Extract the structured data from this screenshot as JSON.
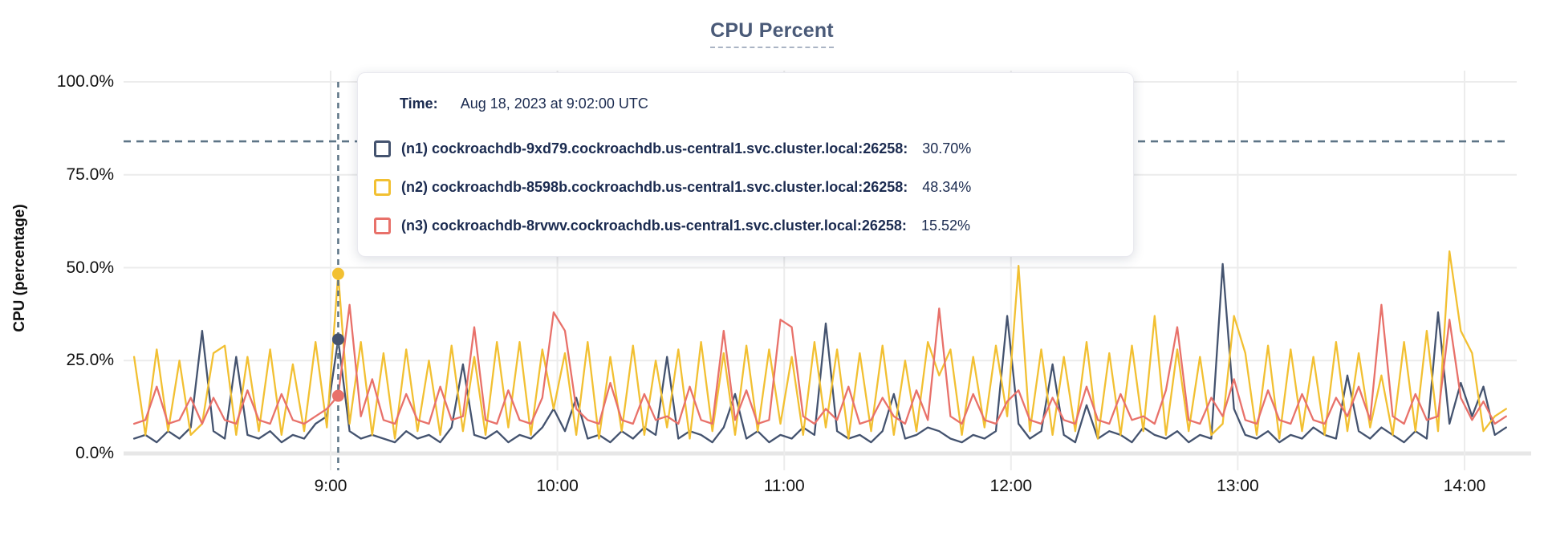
{
  "header": {
    "title": "CPU Percent"
  },
  "tooltip": {
    "time_label": "Time:",
    "time_value": "Aug 18, 2023 at 9:02:00 UTC",
    "rows": [
      {
        "id": "n1",
        "label": "(n1) cockroachdb-9xd79.cockroachdb.us-central1.svc.cluster.local:26258:",
        "value": "30.70%",
        "color": "#44536f"
      },
      {
        "id": "n2",
        "label": "(n2) cockroachdb-8598b.cockroachdb.us-central1.svc.cluster.local:26258:",
        "value": "48.34%",
        "color": "#f2c032"
      },
      {
        "id": "n3",
        "label": "(n3) cockroachdb-8rvwv.cockroachdb.us-central1.svc.cluster.local:26258:",
        "value": "15.52%",
        "color": "#e8716a"
      }
    ]
  },
  "colors": {
    "title": "#4a5a78",
    "gridline": "#ececec",
    "baseline": "#e7e7e7",
    "crosshair": "#5d7486",
    "tooltip_text": "#1b2b50"
  },
  "chart_data": {
    "type": "line",
    "title": "CPU Percent",
    "xlabel": "",
    "ylabel": "CPU (percentage)",
    "ylim": [
      0,
      100
    ],
    "grid": true,
    "legend_position": "tooltip-overlay",
    "y_ticks": [
      {
        "label": "100.0%",
        "value": 100
      },
      {
        "label": "75.0%",
        "value": 75
      },
      {
        "label": "50.0%",
        "value": 50
      },
      {
        "label": "25.0%",
        "value": 25
      },
      {
        "label": "0.0%",
        "value": 0
      }
    ],
    "x_ticks": [
      {
        "label": "9:00",
        "minutes": 540
      },
      {
        "label": "10:00",
        "minutes": 600
      },
      {
        "label": "11:00",
        "minutes": 660
      },
      {
        "label": "12:00",
        "minutes": 720
      },
      {
        "label": "13:00",
        "minutes": 780
      },
      {
        "label": "14:00",
        "minutes": 840
      }
    ],
    "x_start_minutes": 488,
    "x_step_minutes": 3,
    "hover": {
      "time_label": "9:02",
      "index": 18,
      "crosshair_y_percent": 84,
      "values": {
        "n1": 30.7,
        "n2": 48.34,
        "n3": 15.52
      }
    },
    "series": [
      {
        "name": "(n1) cockroachdb-9xd79.cockroachdb.us-central1.svc.cluster.local:26258",
        "color": "#44536f",
        "values": [
          4,
          5,
          3,
          6,
          4,
          7,
          33,
          6,
          4,
          26,
          5,
          4,
          6,
          3,
          5,
          4,
          8,
          10,
          30.7,
          6,
          4,
          5,
          4,
          3,
          6,
          4,
          5,
          3,
          7,
          24,
          5,
          4,
          6,
          3,
          5,
          4,
          7,
          12,
          6,
          15,
          4,
          5,
          3,
          6,
          4,
          7,
          5,
          26,
          4,
          6,
          5,
          3,
          7,
          16,
          4,
          6,
          3,
          5,
          4,
          7,
          5,
          35,
          6,
          4,
          5,
          3,
          6,
          16,
          4,
          5,
          7,
          6,
          4,
          3,
          5,
          4,
          6,
          37,
          8,
          4,
          6,
          24,
          5,
          3,
          13,
          4,
          6,
          5,
          3,
          7,
          5,
          4,
          6,
          3,
          5,
          4,
          51,
          12,
          5,
          4,
          6,
          3,
          5,
          4,
          7,
          5,
          4,
          21,
          6,
          4,
          7,
          5,
          3,
          6,
          4,
          38,
          8,
          19,
          10,
          18,
          5,
          7
        ]
      },
      {
        "name": "(n2) cockroachdb-8598b.cockroachdb.us-central1.svc.cluster.local:26258",
        "color": "#f2c032",
        "values": [
          26,
          5,
          28,
          6,
          25,
          5,
          8,
          27,
          29,
          5,
          26,
          6,
          28,
          5,
          24,
          6,
          30,
          7,
          48.34,
          8,
          30,
          5,
          27,
          4,
          28,
          6,
          25,
          5,
          29,
          6,
          26,
          5,
          30,
          7,
          30,
          5,
          28,
          12,
          27,
          5,
          30,
          4,
          26,
          6,
          29,
          5,
          25,
          7,
          28,
          4,
          30,
          6,
          27,
          5,
          29,
          6,
          28,
          8,
          26,
          5,
          30,
          7,
          28,
          4,
          27,
          6,
          29,
          5,
          25,
          6,
          30,
          21,
          28,
          5,
          26,
          7,
          29,
          10,
          50.5,
          6,
          28,
          5,
          26,
          6,
          30,
          4,
          27,
          5,
          29,
          6,
          37,
          5,
          28,
          6,
          26,
          5,
          8,
          37,
          27,
          5,
          29,
          4,
          28,
          6,
          26,
          5,
          30,
          6,
          27,
          7,
          21,
          5,
          30,
          6,
          33,
          6,
          54.4,
          33,
          27,
          6,
          10,
          12
        ]
      },
      {
        "name": "(n3) cockroachdb-8rvwv.cockroachdb.us-central1.svc.cluster.local:26258",
        "color": "#e8716a",
        "values": [
          8,
          9,
          18,
          8,
          9,
          15,
          8,
          15,
          9,
          8,
          17,
          9,
          8,
          16,
          9,
          8,
          10,
          12,
          15.52,
          40,
          10,
          20,
          9,
          8,
          16,
          9,
          8,
          18,
          9,
          10,
          34,
          9,
          8,
          17,
          9,
          8,
          15,
          38,
          33,
          12,
          9,
          8,
          19,
          9,
          8,
          16,
          9,
          10,
          8,
          18,
          9,
          8,
          33,
          9,
          17,
          8,
          9,
          36,
          34,
          10,
          8,
          12,
          9,
          18,
          8,
          9,
          15,
          10,
          8,
          17,
          9,
          39,
          10,
          8,
          16,
          9,
          8,
          14,
          17,
          9,
          8,
          15,
          9,
          8,
          18,
          9,
          8,
          16,
          9,
          10,
          8,
          17,
          34,
          9,
          8,
          15,
          10,
          20,
          9,
          8,
          17,
          9,
          8,
          16,
          9,
          8,
          15,
          10,
          18,
          9,
          40,
          10,
          8,
          16,
          9,
          10,
          36,
          15,
          9,
          14,
          8,
          10
        ]
      }
    ]
  }
}
